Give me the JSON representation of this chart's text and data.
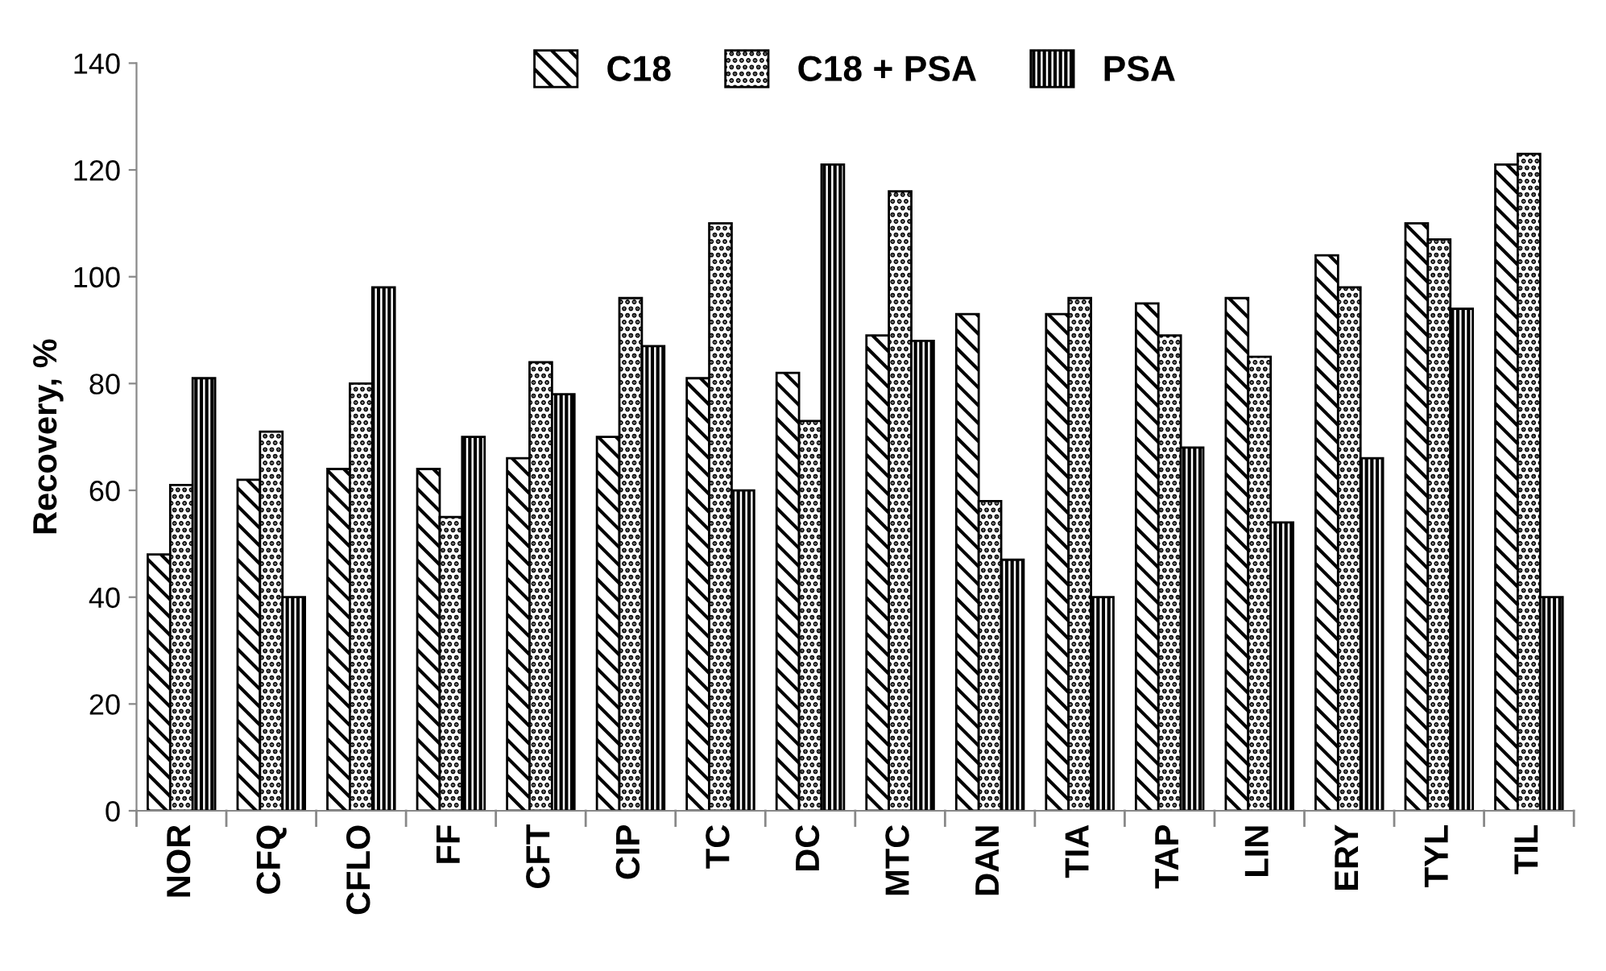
{
  "chart_data": {
    "type": "bar",
    "ylabel": "Recovery, %",
    "categories": [
      "NOR",
      "CFQ",
      "CFLO",
      "FF",
      "CFT",
      "CIP",
      "TC",
      "DC",
      "MTC",
      "DAN",
      "TIA",
      "TAP",
      "LIN",
      "ERY",
      "TYL",
      "TIL"
    ],
    "series": [
      {
        "name": "C18",
        "color": "#000000",
        "values": [
          48,
          62,
          64,
          64,
          66,
          70,
          81,
          82,
          89,
          93,
          93,
          95,
          96,
          104,
          110,
          121
        ]
      },
      {
        "name": "C18 + PSA",
        "color": "#000000",
        "values": [
          61,
          71,
          80,
          55,
          84,
          96,
          110,
          73,
          116,
          58,
          96,
          89,
          85,
          98,
          107,
          123
        ]
      },
      {
        "name": "PSA",
        "color": "#000000",
        "values": [
          81,
          40,
          98,
          70,
          78,
          87,
          60,
          121,
          88,
          47,
          40,
          68,
          54,
          66,
          94,
          40
        ]
      }
    ],
    "ylim": [
      0,
      140
    ],
    "yticks": [
      0,
      20,
      40,
      60,
      80,
      100,
      120,
      140
    ],
    "grid": false,
    "legend": "top"
  }
}
